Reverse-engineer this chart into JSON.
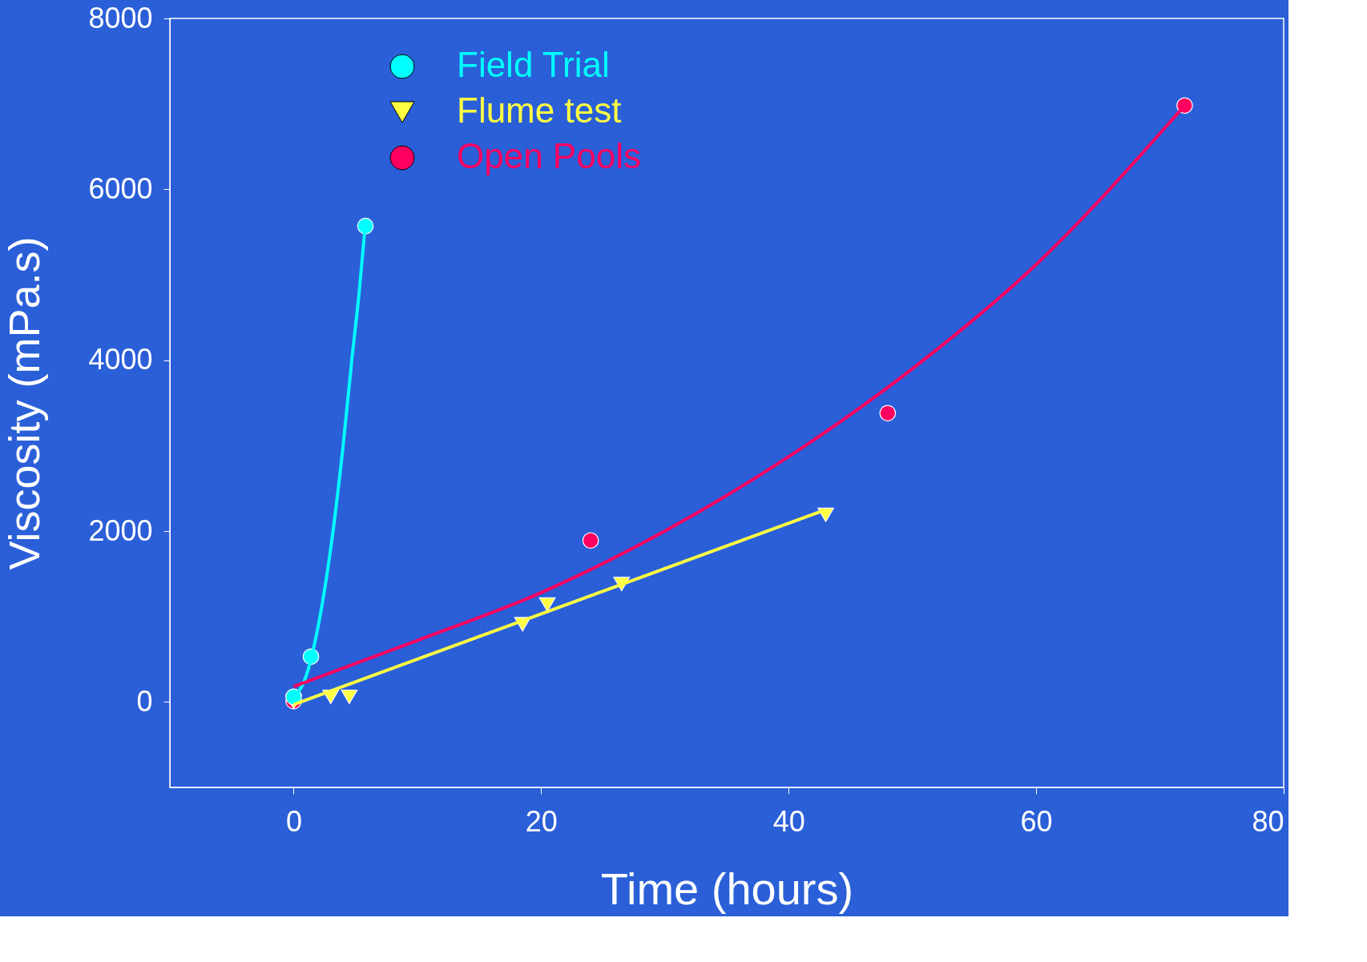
{
  "chart_data": {
    "type": "scatter",
    "xlabel": "Time (hours)",
    "ylabel": "Viscosity (mPa.s)",
    "xlim": [
      -10,
      80
    ],
    "ylim": [
      -1000,
      8000
    ],
    "xticks": [
      0,
      20,
      40,
      60,
      80
    ],
    "yticks": [
      0,
      2000,
      4000,
      6000,
      8000
    ],
    "grid": false,
    "legend": "top left",
    "series": [
      {
        "name": "Field Trial",
        "marker": "circle",
        "color": "#00ffff",
        "x": [
          0,
          1.4,
          5.8
        ],
        "values": [
          60,
          530,
          5570
        ]
      },
      {
        "name": "Flume test",
        "marker": "triangle",
        "color": "#ffff44",
        "x": [
          0,
          3,
          4.5,
          18.5,
          20.5,
          26.5,
          43
        ],
        "values": [
          0,
          60,
          60,
          910,
          1140,
          1380,
          2190
        ]
      },
      {
        "name": "Open Pools",
        "marker": "circle",
        "color": "#ff0060",
        "x": [
          0,
          24,
          48,
          72
        ],
        "values": [
          10,
          1890,
          3380,
          6980
        ]
      },
      {
        "type": "line",
        "color": "#00ffff",
        "x": [
          0,
          1,
          2,
          3,
          4,
          4.7,
          5.3,
          5.8
        ],
        "values": [
          50,
          300,
          900,
          1800,
          3000,
          4000,
          4800,
          5600
        ]
      },
      {
        "type": "line",
        "color": "#ffff44",
        "x": [
          0,
          43
        ],
        "values": [
          -30,
          2250
        ]
      },
      {
        "type": "line",
        "color": "#ff0060",
        "x": [
          0,
          10,
          20,
          30,
          40,
          50,
          60,
          72
        ],
        "values": [
          180,
          720,
          1280,
          2000,
          2870,
          3900,
          5120,
          6980
        ]
      }
    ]
  }
}
